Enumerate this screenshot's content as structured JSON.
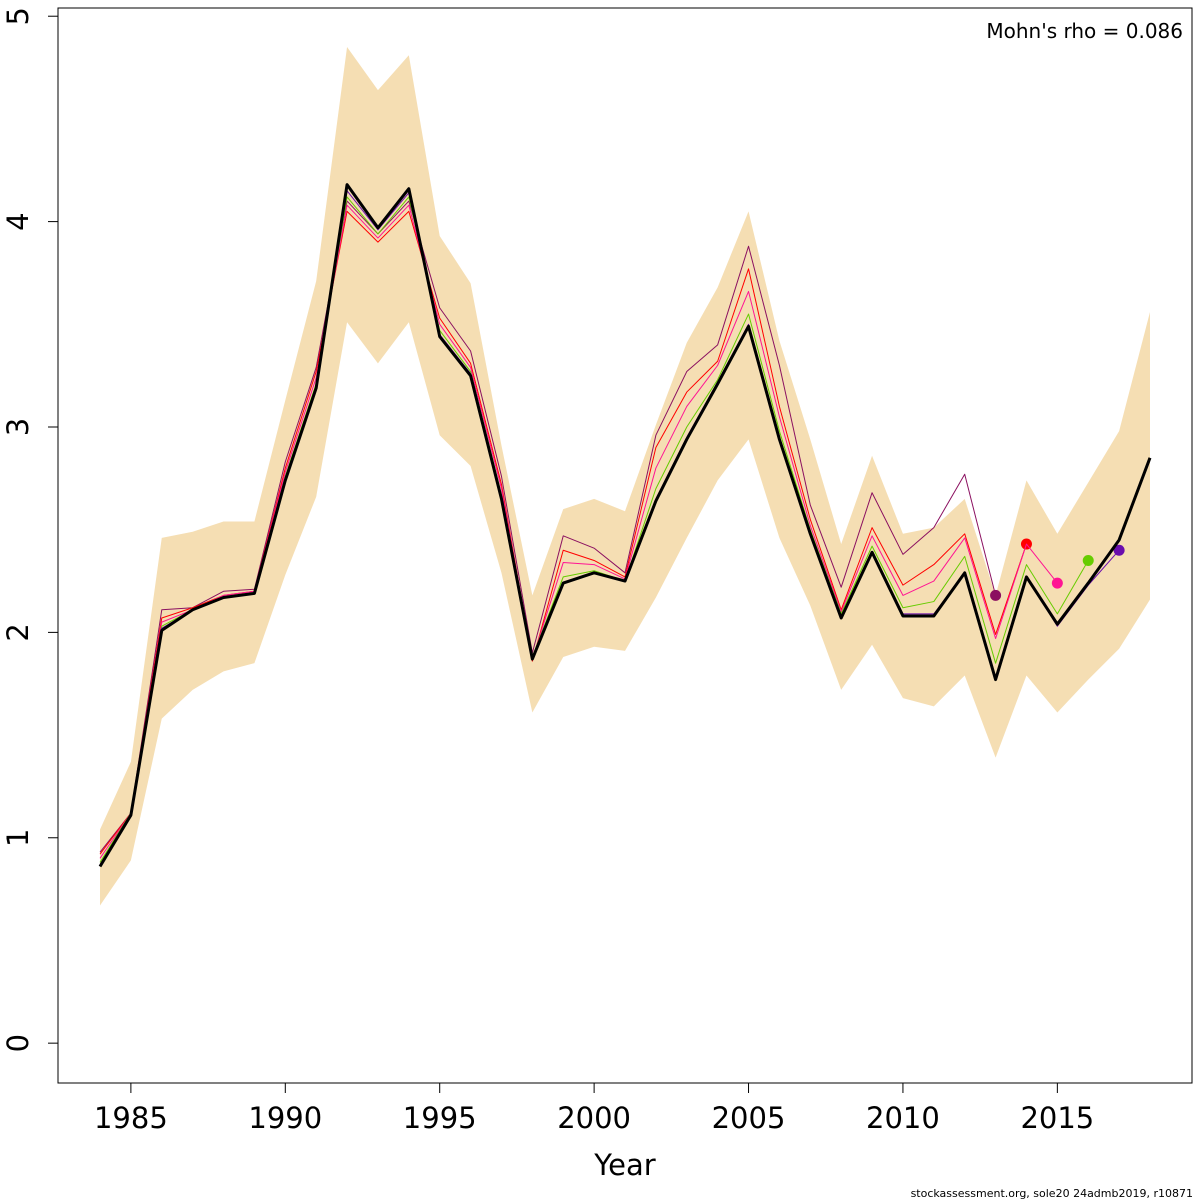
{
  "chart_data": {
    "type": "line",
    "xlabel": "Year",
    "annotation": "Mohn's rho = 0.086",
    "footer": "stockassessment.org, sole20 24admb2019, r10871",
    "x": [
      1984,
      1985,
      1986,
      1987,
      1988,
      1989,
      1990,
      1991,
      1992,
      1993,
      1994,
      1995,
      1996,
      1997,
      1998,
      1999,
      2000,
      2001,
      2002,
      2003,
      2004,
      2005,
      2006,
      2007,
      2008,
      2009,
      2010,
      2011,
      2012,
      2013,
      2014,
      2015,
      2016,
      2017,
      2018
    ],
    "xlim": [
      1982.64,
      2019.36
    ],
    "xticks": [
      1985,
      1990,
      1995,
      2000,
      2005,
      2010,
      2015
    ],
    "ylim": [
      -0.194,
      5.04
    ],
    "yticks": [
      0,
      1,
      2,
      3,
      4,
      5
    ],
    "band": {
      "color": "#f5deb3",
      "upper": [
        1.04,
        1.37,
        2.46,
        2.49,
        2.54,
        2.54,
        3.13,
        3.71,
        4.85,
        4.64,
        4.81,
        3.93,
        3.7,
        2.91,
        2.18,
        2.6,
        2.65,
        2.59,
        3.01,
        3.41,
        3.68,
        4.05,
        3.42,
        2.94,
        2.43,
        2.86,
        2.48,
        2.51,
        2.65,
        2.18,
        2.74,
        2.48,
        2.73,
        2.98,
        3.56
      ],
      "lower": [
        0.67,
        0.89,
        1.58,
        1.72,
        1.81,
        1.85,
        2.28,
        2.66,
        3.51,
        3.31,
        3.51,
        2.96,
        2.81,
        2.29,
        1.61,
        1.88,
        1.93,
        1.91,
        2.17,
        2.46,
        2.74,
        2.94,
        2.46,
        2.13,
        1.72,
        1.94,
        1.68,
        1.64,
        1.79,
        1.39,
        1.79,
        1.61,
        1.77,
        1.92,
        2.16
      ]
    },
    "series": [
      {
        "color": "#8b1060",
        "values": [
          0.93,
          1.12,
          2.11,
          2.12,
          2.2,
          2.21,
          2.83,
          3.29,
          4.1,
          3.94,
          4.1,
          3.58,
          3.37,
          2.76,
          1.9,
          2.47,
          2.41,
          2.29,
          2.96,
          3.27,
          3.4,
          3.88,
          3.3,
          2.62,
          2.22,
          2.68,
          2.38,
          2.51,
          2.77,
          2.18,
          null,
          null,
          null,
          null,
          null
        ]
      },
      {
        "color": "#ff0000",
        "values": [
          0.92,
          1.12,
          2.07,
          2.12,
          2.18,
          2.2,
          2.8,
          3.27,
          4.05,
          3.9,
          4.05,
          3.53,
          3.31,
          2.72,
          1.86,
          2.4,
          2.35,
          2.27,
          2.9,
          3.17,
          3.32,
          3.77,
          3.1,
          2.55,
          2.11,
          2.51,
          2.23,
          2.33,
          2.48,
          1.99,
          2.43,
          null,
          null,
          null,
          null
        ]
      },
      {
        "color": "#ff1493",
        "values": [
          0.9,
          1.12,
          2.05,
          2.11,
          2.18,
          2.2,
          2.78,
          3.24,
          4.08,
          3.92,
          4.08,
          3.5,
          3.29,
          2.7,
          1.87,
          2.34,
          2.33,
          2.26,
          2.8,
          3.1,
          3.3,
          3.66,
          3.05,
          2.52,
          2.1,
          2.47,
          2.18,
          2.25,
          2.46,
          1.97,
          2.43,
          2.24,
          null,
          null,
          null
        ]
      },
      {
        "color": "#66cc00",
        "values": [
          0.88,
          1.12,
          2.03,
          2.11,
          2.17,
          2.19,
          2.76,
          3.21,
          4.12,
          3.94,
          4.12,
          3.47,
          3.27,
          2.67,
          1.88,
          2.27,
          2.3,
          2.25,
          2.7,
          3.0,
          3.23,
          3.55,
          2.98,
          2.5,
          2.09,
          2.42,
          2.12,
          2.15,
          2.37,
          1.85,
          2.33,
          2.09,
          2.35,
          null,
          null
        ]
      },
      {
        "color": "#6a0dad",
        "values": [
          0.87,
          1.11,
          2.02,
          2.11,
          2.17,
          2.19,
          2.74,
          3.19,
          4.15,
          3.96,
          4.14,
          3.45,
          3.26,
          2.66,
          1.88,
          2.24,
          2.29,
          2.25,
          2.65,
          2.95,
          3.22,
          3.5,
          2.95,
          2.48,
          2.08,
          2.39,
          2.09,
          2.09,
          2.29,
          1.78,
          2.27,
          2.03,
          2.23,
          2.4,
          null
        ]
      },
      {
        "color": "#000000",
        "values": [
          0.86,
          1.11,
          2.01,
          2.11,
          2.17,
          2.19,
          2.74,
          3.19,
          4.18,
          3.97,
          4.16,
          3.44,
          3.25,
          2.65,
          1.87,
          2.24,
          2.29,
          2.25,
          2.64,
          2.94,
          3.21,
          3.49,
          2.94,
          2.48,
          2.07,
          2.39,
          2.08,
          2.08,
          2.29,
          1.77,
          2.27,
          2.04,
          2.24,
          2.45,
          2.85
        ]
      }
    ]
  }
}
